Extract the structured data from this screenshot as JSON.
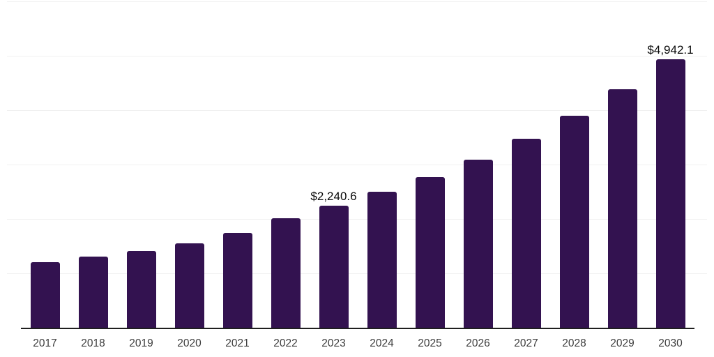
{
  "chart_data": {
    "type": "bar",
    "title": "",
    "xlabel": "",
    "ylabel": "",
    "categories": [
      "2017",
      "2018",
      "2019",
      "2020",
      "2021",
      "2022",
      "2023",
      "2024",
      "2025",
      "2026",
      "2027",
      "2028",
      "2029",
      "2030"
    ],
    "values": [
      1210,
      1310,
      1415,
      1555,
      1750,
      2015,
      2240.6,
      2495,
      2775,
      3095,
      3470,
      3900,
      4380,
      4942.1
    ],
    "data_labels": [
      "",
      "",
      "",
      "",
      "",
      "",
      "$2,240.6",
      "",
      "",
      "",
      "",
      "",
      "",
      "$4,942.1"
    ],
    "ylim": [
      0,
      6000
    ],
    "ytick_step": 1000,
    "grid": true,
    "legend_position": "none",
    "yticks_visible": false,
    "colors": {
      "bar": "#331250",
      "gridline": "#f0f0f0",
      "axis": "#1f1f1f",
      "tick_label": "#3d3d3d",
      "data_label": "#0a0a0a"
    }
  }
}
